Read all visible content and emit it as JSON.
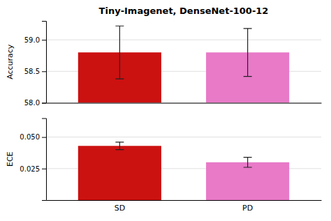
{
  "chart_data": [
    {
      "type": "bar",
      "title": "Tiny-Imagenet, DenseNet-100-12",
      "categories": [
        "SD",
        "PD"
      ],
      "values": [
        58.8,
        58.8
      ],
      "errors": [
        0.42,
        0.38
      ],
      "colors": [
        "#cc1111",
        "#e87ac8"
      ],
      "ylabel": "Accuracy",
      "ylim": [
        58.0,
        59.3
      ],
      "yticks": [
        {
          "value": 58.0,
          "label": "58.0"
        },
        58.5,
        {
          "value": 59.0,
          "label": "59.0"
        }
      ],
      "grid": true,
      "tick_labels": "y"
    },
    {
      "type": "bar",
      "categories": [
        "SD",
        "PD"
      ],
      "values": [
        0.043,
        0.03
      ],
      "errors": [
        0.003,
        0.004
      ],
      "colors": [
        "#cc1111",
        "#e87ac8"
      ],
      "ylabel": "ECE",
      "ylim": [
        0.0,
        0.065
      ],
      "yticks": [
        0.025,
        {
          "value": 0.05,
          "label": "0.050"
        }
      ],
      "grid": true
    }
  ]
}
